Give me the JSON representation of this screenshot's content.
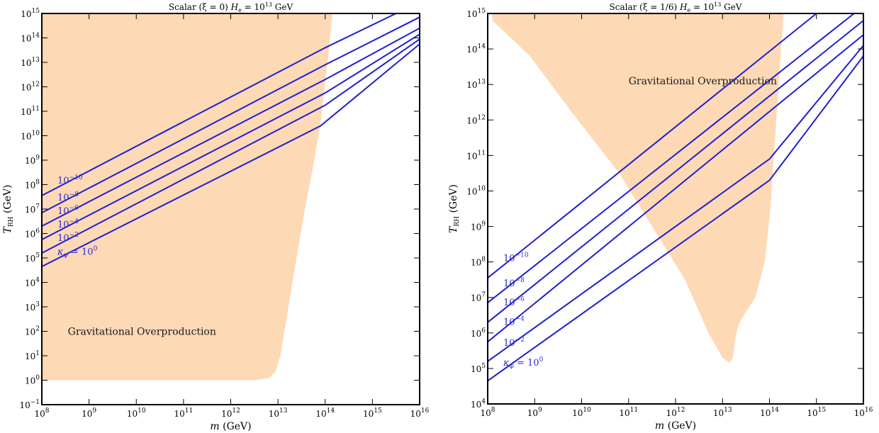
{
  "chart_data": [
    {
      "type": "line",
      "title_text": "Scalar (ξ = 0)",
      "title_h": "H",
      "title_h_sub": "e",
      "title_h_val": " = 10",
      "title_h_exp": "13",
      "title_h_unit": " GeV",
      "xlabel_var": "m",
      "xlabel_unit": " (GeV)",
      "ylabel_var": "T",
      "ylabel_sub": "RH",
      "ylabel_unit": " (GeV)",
      "xscale": "log",
      "yscale": "log",
      "xlim": [
        100000000.0,
        1e+16
      ],
      "ylim": [
        0.1,
        1000000000000000.0
      ],
      "x_ticks": [
        {
          "base": "10",
          "exp": "8"
        },
        {
          "base": "10",
          "exp": "9"
        },
        {
          "base": "10",
          "exp": "10"
        },
        {
          "base": "10",
          "exp": "11"
        },
        {
          "base": "10",
          "exp": "12"
        },
        {
          "base": "10",
          "exp": "13"
        },
        {
          "base": "10",
          "exp": "14"
        },
        {
          "base": "10",
          "exp": "15"
        },
        {
          "base": "10",
          "exp": "16"
        }
      ],
      "y_ticks": [
        {
          "base": "10",
          "exp": "−1"
        },
        {
          "base": "10",
          "exp": "0"
        },
        {
          "base": "10",
          "exp": "1"
        },
        {
          "base": "10",
          "exp": "2"
        },
        {
          "base": "10",
          "exp": "3"
        },
        {
          "base": "10",
          "exp": "4"
        },
        {
          "base": "10",
          "exp": "5"
        },
        {
          "base": "10",
          "exp": "6"
        },
        {
          "base": "10",
          "exp": "7"
        },
        {
          "base": "10",
          "exp": "8"
        },
        {
          "base": "10",
          "exp": "9"
        },
        {
          "base": "10",
          "exp": "10"
        },
        {
          "base": "10",
          "exp": "11"
        },
        {
          "base": "10",
          "exp": "12"
        },
        {
          "base": "10",
          "exp": "13"
        },
        {
          "base": "10",
          "exp": "14"
        },
        {
          "base": "10",
          "exp": "15"
        }
      ],
      "region": {
        "label": "Gravitational Overproduction",
        "color": "#fdd9b5",
        "boundary_log10": [
          [
            8,
            0
          ],
          [
            12.5,
            0
          ],
          [
            12.8,
            0.08
          ],
          [
            12.95,
            0.35
          ],
          [
            13.05,
            1.0
          ],
          [
            13.18,
            2.5
          ],
          [
            13.35,
            4.5
          ],
          [
            13.55,
            6.8
          ],
          [
            13.75,
            8.8
          ],
          [
            13.9,
            10.5
          ],
          [
            13.98,
            11.8
          ],
          [
            14.05,
            13
          ],
          [
            14.12,
            14.3
          ],
          [
            14.15,
            15
          ],
          [
            8,
            15
          ]
        ]
      },
      "series_color": "#1f1fd1",
      "series": [
        {
          "label_base": "10",
          "label_exp": "−10",
          "points_log10": [
            [
              8,
              7.55
            ],
            [
              14,
              13.6
            ],
            [
              15.5,
              15
            ]
          ]
        },
        {
          "label_base": "10",
          "label_exp": "−8",
          "points_log10": [
            [
              8,
              6.85
            ],
            [
              14,
              12.9
            ],
            [
              16,
              14.85
            ]
          ]
        },
        {
          "label_base": "10",
          "label_exp": "−6",
          "points_log10": [
            [
              8,
              6.3
            ],
            [
              14,
              12.3
            ],
            [
              16,
              14.4
            ]
          ]
        },
        {
          "label_base": "10",
          "label_exp": "−4",
          "points_log10": [
            [
              8,
              5.75
            ],
            [
              14,
              11.75
            ],
            [
              16,
              14.15
            ]
          ]
        },
        {
          "label_base": "10",
          "label_exp": "−2",
          "points_log10": [
            [
              8,
              5.2
            ],
            [
              14,
              11.25
            ],
            [
              16,
              13.95
            ]
          ]
        },
        {
          "label_prefix": "κ",
          "label_sub": "φ",
          "label_eq": " = ",
          "label_base": "10",
          "label_exp": "0",
          "points_log10": [
            [
              8,
              4.65
            ],
            [
              13.9,
              10.4
            ],
            [
              16,
              13.75
            ]
          ]
        }
      ]
    },
    {
      "type": "line",
      "title_text": "Scalar (ξ = 1/6)",
      "title_h": "H",
      "title_h_sub": "e",
      "title_h_val": " = 10",
      "title_h_exp": "13",
      "title_h_unit": " GeV",
      "xlabel_var": "m",
      "xlabel_unit": " (GeV)",
      "ylabel_var": "T",
      "ylabel_sub": "RH",
      "ylabel_unit": " (GeV)",
      "xscale": "log",
      "yscale": "log",
      "xlim": [
        100000000.0,
        1e+16
      ],
      "ylim": [
        10000.0,
        1000000000000000.0
      ],
      "x_ticks": [
        {
          "base": "10",
          "exp": "8"
        },
        {
          "base": "10",
          "exp": "9"
        },
        {
          "base": "10",
          "exp": "10"
        },
        {
          "base": "10",
          "exp": "11"
        },
        {
          "base": "10",
          "exp": "12"
        },
        {
          "base": "10",
          "exp": "13"
        },
        {
          "base": "10",
          "exp": "14"
        },
        {
          "base": "10",
          "exp": "15"
        },
        {
          "base": "10",
          "exp": "16"
        }
      ],
      "y_ticks": [
        {
          "base": "10",
          "exp": "4"
        },
        {
          "base": "10",
          "exp": "5"
        },
        {
          "base": "10",
          "exp": "6"
        },
        {
          "base": "10",
          "exp": "7"
        },
        {
          "base": "10",
          "exp": "8"
        },
        {
          "base": "10",
          "exp": "9"
        },
        {
          "base": "10",
          "exp": "10"
        },
        {
          "base": "10",
          "exp": "11"
        },
        {
          "base": "10",
          "exp": "12"
        },
        {
          "base": "10",
          "exp": "13"
        },
        {
          "base": "10",
          "exp": "14"
        },
        {
          "base": "10",
          "exp": "15"
        }
      ],
      "region": {
        "label": "Gravitational Overproduction",
        "color": "#fdd9b5",
        "boundary_log10": [
          [
            8.1,
            15
          ],
          [
            14.3,
            15
          ],
          [
            14.22,
            13.5
          ],
          [
            14.12,
            11.5
          ],
          [
            14.02,
            9.5
          ],
          [
            13.9,
            8
          ],
          [
            13.7,
            7
          ],
          [
            13.45,
            6.5
          ],
          [
            13.35,
            6.25
          ],
          [
            13.28,
            5.9
          ],
          [
            13.22,
            5.3
          ],
          [
            13.15,
            5.15
          ],
          [
            13.0,
            5.3
          ],
          [
            12.7,
            6
          ],
          [
            12.2,
            7.5
          ],
          [
            11.5,
            9.0
          ],
          [
            10.8,
            10.5
          ],
          [
            9.8,
            12.2
          ],
          [
            8.9,
            13.8
          ],
          [
            8.1,
            14.8
          ]
        ]
      },
      "series_color": "#1f1fd1",
      "series": [
        {
          "label_base": "10",
          "label_exp": "−10",
          "points_log10": [
            [
              8,
              7.55
            ],
            [
              15,
              15
            ]
          ]
        },
        {
          "label_base": "10",
          "label_exp": "−8",
          "points_log10": [
            [
              8,
              6.85
            ],
            [
              15.8,
              15
            ]
          ]
        },
        {
          "label_base": "10",
          "label_exp": "−6",
          "points_log10": [
            [
              8,
              6.3
            ],
            [
              16,
              14.8
            ]
          ]
        },
        {
          "label_base": "10",
          "label_exp": "−4",
          "points_log10": [
            [
              8,
              5.75
            ],
            [
              16,
              14.4
            ]
          ]
        },
        {
          "label_base": "10",
          "label_exp": "−2",
          "points_log10": [
            [
              8,
              5.2
            ],
            [
              14,
              10.9
            ],
            [
              16,
              14.1
            ]
          ]
        },
        {
          "label_prefix": "κ",
          "label_sub": "φ",
          "label_eq": " = ",
          "label_base": "10",
          "label_exp": "0",
          "points_log10": [
            [
              8,
              4.65
            ],
            [
              14,
              10.3
            ],
            [
              16,
              13.8
            ]
          ]
        }
      ]
    }
  ]
}
